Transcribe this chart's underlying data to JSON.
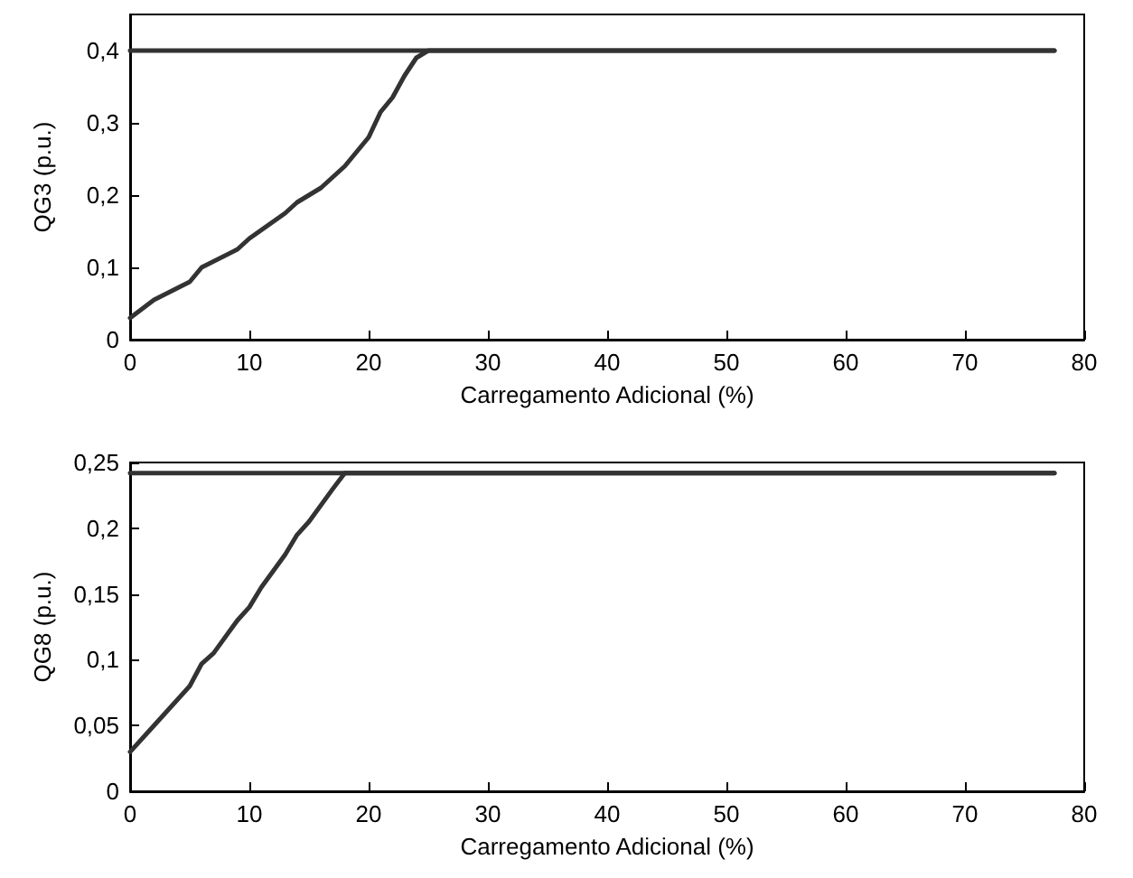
{
  "chart_data": [
    {
      "type": "line",
      "xlabel": "Carregamento Adicional (%)",
      "ylabel": "QG3 (p.u.)",
      "xlim": [
        0,
        80
      ],
      "xticks": [
        0,
        10,
        20,
        30,
        40,
        50,
        60,
        70,
        80
      ],
      "ylim": [
        0,
        0.45
      ],
      "yticks": [
        0,
        {
          "value": 0.1,
          "label": "0,1"
        },
        {
          "value": 0.2,
          "label": "0,2"
        },
        {
          "value": 0.3,
          "label": "0,3"
        },
        {
          "value": 0.4,
          "label": "0,4"
        }
      ],
      "grid": false,
      "marker": "none",
      "line_style": "solid",
      "series": [
        {
          "color": "#333333",
          "x": [
            0,
            77.5
          ],
          "values": [
            0.4,
            0.4
          ]
        },
        {
          "color": "#333333",
          "x": [
            0,
            2,
            5,
            6,
            9,
            10,
            13,
            14,
            16,
            18,
            19,
            20,
            21,
            22,
            23,
            24,
            25,
            77.5
          ],
          "values": [
            0.03,
            0.055,
            0.08,
            0.1,
            0.125,
            0.14,
            0.175,
            0.19,
            0.21,
            0.24,
            0.26,
            0.28,
            0.315,
            0.335,
            0.365,
            0.39,
            0.4,
            0.4
          ]
        }
      ]
    },
    {
      "type": "line",
      "xlabel": "Carregamento Adicional (%)",
      "ylabel": "QG8 (p.u.)",
      "xlim": [
        0,
        80
      ],
      "xticks": [
        0,
        10,
        20,
        30,
        40,
        50,
        60,
        70,
        80
      ],
      "ylim": [
        0,
        0.25
      ],
      "yticks": [
        0,
        {
          "value": 0.05,
          "label": "0,05"
        },
        {
          "value": 0.1,
          "label": "0,1"
        },
        {
          "value": 0.15,
          "label": "0,15"
        },
        {
          "value": 0.2,
          "label": "0,2"
        },
        {
          "value": 0.25,
          "label": "0,25"
        }
      ],
      "grid": false,
      "marker": "none",
      "line_style": "solid",
      "series": [
        {
          "color": "#333333",
          "x": [
            0,
            77.5
          ],
          "values": [
            0.242,
            0.242
          ]
        },
        {
          "color": "#333333",
          "x": [
            0,
            2,
            5,
            6,
            7,
            9,
            10,
            11,
            13,
            14,
            15,
            17,
            18,
            77.5
          ],
          "values": [
            0.03,
            0.05,
            0.08,
            0.097,
            0.105,
            0.13,
            0.14,
            0.155,
            0.18,
            0.195,
            0.205,
            0.23,
            0.242,
            0.242
          ]
        }
      ]
    }
  ]
}
